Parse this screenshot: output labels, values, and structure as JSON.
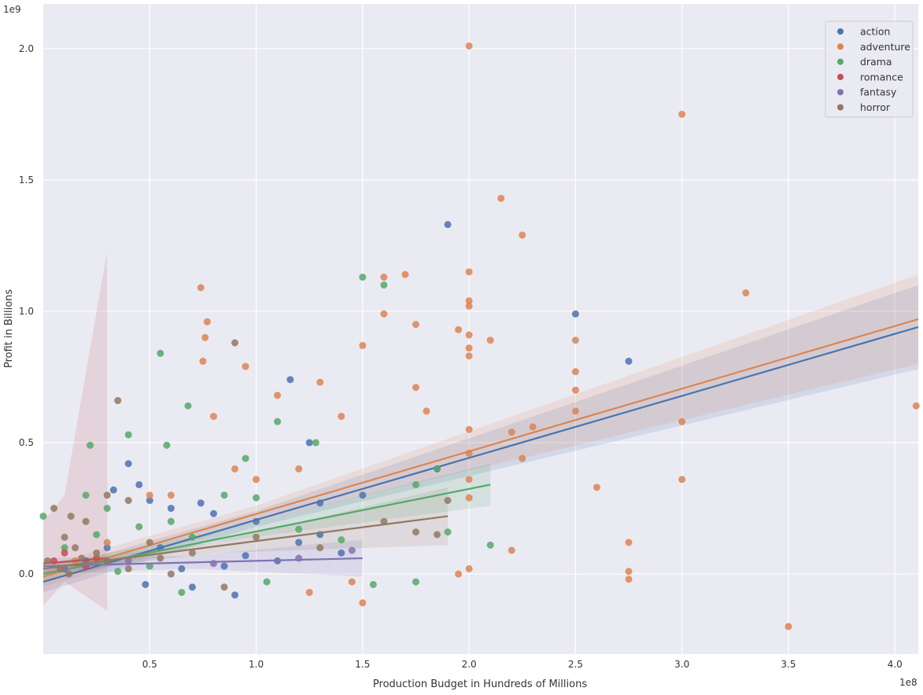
{
  "chart_data": {
    "type": "scatter",
    "title": "",
    "xlabel": "Production Budget in Hundreds of Millions",
    "ylabel": "Profit in Billions",
    "x_offset_label": "1e8",
    "y_offset_label": "1e9",
    "xlim": [
      0,
      4.11
    ],
    "ylim": [
      -0.305,
      2.17
    ],
    "x_unit_scale": 100000000.0,
    "y_unit_scale": 1000000000.0,
    "xticks": [
      0.5,
      1.0,
      1.5,
      2.0,
      2.5,
      3.0,
      3.5,
      4.0
    ],
    "xtick_labels": [
      "0.5",
      "1.0",
      "1.5",
      "2.0",
      "2.5",
      "3.0",
      "3.5",
      "4.0"
    ],
    "yticks": [
      0.0,
      0.5,
      1.0,
      1.5,
      2.0
    ],
    "ytick_labels": [
      "0.0",
      "0.5",
      "1.0",
      "1.5",
      "2.0"
    ],
    "grid": true,
    "background": "#eaeaf2",
    "legend_position": "top-right",
    "series": [
      {
        "name": "action",
        "color": "#4c72b0",
        "points": [
          [
            1.9,
            1.33
          ],
          [
            2.5,
            0.99
          ],
          [
            2.75,
            0.81
          ],
          [
            1.16,
            0.74
          ],
          [
            0.4,
            0.42
          ],
          [
            0.33,
            0.32
          ],
          [
            0.74,
            0.27
          ],
          [
            1.25,
            0.5
          ],
          [
            1.3,
            0.27
          ],
          [
            0.9,
            -0.08
          ],
          [
            0.7,
            -0.05
          ],
          [
            0.48,
            -0.04
          ],
          [
            0.45,
            0.34
          ],
          [
            0.5,
            0.28
          ],
          [
            0.6,
            0.25
          ],
          [
            0.8,
            0.23
          ],
          [
            1.0,
            0.2
          ],
          [
            1.2,
            0.12
          ],
          [
            1.4,
            0.08
          ],
          [
            0.2,
            0.05
          ],
          [
            0.3,
            0.1
          ],
          [
            0.55,
            0.1
          ],
          [
            0.65,
            0.02
          ],
          [
            0.85,
            0.03
          ],
          [
            1.1,
            0.05
          ],
          [
            1.5,
            0.3
          ],
          [
            1.85,
            0.4
          ],
          [
            1.3,
            0.15
          ],
          [
            0.1,
            0.02
          ],
          [
            0.95,
            0.07
          ]
        ],
        "fit": {
          "x": [
            0,
            4.11
          ],
          "y": [
            -0.03,
            0.94
          ]
        },
        "ci": {
          "x": [
            0,
            1.0,
            4.11
          ],
          "lower": [
            -0.07,
            0.18,
            0.78
          ],
          "upper": [
            0.01,
            0.24,
            1.1
          ]
        }
      },
      {
        "name": "adventure",
        "color": "#dd8452",
        "points": [
          [
            2.0,
            2.01
          ],
          [
            3.0,
            1.75
          ],
          [
            2.15,
            1.43
          ],
          [
            2.25,
            1.29
          ],
          [
            3.3,
            1.07
          ],
          [
            2.0,
            1.15
          ],
          [
            1.6,
            1.13
          ],
          [
            4.1,
            0.64
          ],
          [
            3.5,
            -0.2
          ],
          [
            3.0,
            0.58
          ],
          [
            3.0,
            0.36
          ],
          [
            2.5,
            0.89
          ],
          [
            2.5,
            0.77
          ],
          [
            2.5,
            0.7
          ],
          [
            2.5,
            0.62
          ],
          [
            2.75,
            0.12
          ],
          [
            2.75,
            0.01
          ],
          [
            2.75,
            -0.02
          ],
          [
            2.2,
            0.54
          ],
          [
            2.3,
            0.56
          ],
          [
            2.25,
            0.44
          ],
          [
            2.2,
            0.09
          ],
          [
            2.6,
            0.33
          ],
          [
            2.1,
            0.89
          ],
          [
            2.0,
            1.04
          ],
          [
            2.0,
            1.02
          ],
          [
            2.0,
            0.91
          ],
          [
            2.0,
            0.86
          ],
          [
            2.0,
            0.83
          ],
          [
            2.0,
            0.55
          ],
          [
            2.0,
            0.46
          ],
          [
            2.0,
            0.36
          ],
          [
            2.0,
            0.29
          ],
          [
            2.0,
            0.02
          ],
          [
            1.95,
            0.93
          ],
          [
            1.95,
            0.0
          ],
          [
            1.75,
            0.95
          ],
          [
            1.75,
            0.71
          ],
          [
            0.74,
            1.09
          ],
          [
            0.77,
            0.96
          ],
          [
            0.76,
            0.9
          ],
          [
            0.75,
            0.81
          ],
          [
            0.95,
            0.79
          ],
          [
            1.5,
            0.87
          ],
          [
            1.5,
            -0.11
          ],
          [
            1.3,
            0.73
          ],
          [
            1.1,
            0.68
          ],
          [
            0.8,
            0.6
          ],
          [
            1.6,
            0.99
          ],
          [
            1.7,
            1.14
          ],
          [
            1.8,
            0.62
          ],
          [
            1.4,
            0.6
          ],
          [
            1.2,
            0.4
          ],
          [
            1.0,
            0.36
          ],
          [
            0.9,
            0.4
          ],
          [
            0.6,
            0.3
          ],
          [
            0.5,
            0.3
          ],
          [
            0.3,
            0.12
          ],
          [
            0.15,
            0.05
          ],
          [
            1.45,
            -0.03
          ],
          [
            1.25,
            -0.07
          ]
        ],
        "fit": {
          "x": [
            0,
            4.11
          ],
          "y": [
            -0.01,
            0.97
          ]
        },
        "ci": {
          "x": [
            0,
            1.0,
            4.11
          ],
          "lower": [
            -0.05,
            0.2,
            0.8
          ],
          "upper": [
            0.03,
            0.26,
            1.14
          ]
        }
      },
      {
        "name": "drama",
        "color": "#55a868",
        "points": [
          [
            1.5,
            1.13
          ],
          [
            1.6,
            1.1
          ],
          [
            0.55,
            0.84
          ],
          [
            0.68,
            0.64
          ],
          [
            0.4,
            0.53
          ],
          [
            0.22,
            0.49
          ],
          [
            0.58,
            0.49
          ],
          [
            1.1,
            0.58
          ],
          [
            2.1,
            0.11
          ],
          [
            1.75,
            0.34
          ],
          [
            0.95,
            0.44
          ],
          [
            1.28,
            0.5
          ],
          [
            0.0,
            0.22
          ],
          [
            0.2,
            0.3
          ],
          [
            0.3,
            0.25
          ],
          [
            0.45,
            0.18
          ],
          [
            0.6,
            0.2
          ],
          [
            0.7,
            0.14
          ],
          [
            0.85,
            0.3
          ],
          [
            1.0,
            0.29
          ],
          [
            1.2,
            0.17
          ],
          [
            1.4,
            0.13
          ],
          [
            1.55,
            -0.04
          ],
          [
            1.75,
            -0.03
          ],
          [
            0.65,
            -0.07
          ],
          [
            0.5,
            0.03
          ],
          [
            0.35,
            0.01
          ],
          [
            0.1,
            0.1
          ],
          [
            0.25,
            0.15
          ],
          [
            1.85,
            0.4
          ],
          [
            1.9,
            0.16
          ],
          [
            1.05,
            -0.03
          ]
        ],
        "fit": {
          "x": [
            0,
            2.1
          ],
          "y": [
            0.0,
            0.34
          ]
        },
        "ci": {
          "x": [
            0,
            0.8,
            2.1
          ],
          "lower": [
            -0.03,
            0.12,
            0.26
          ],
          "upper": [
            0.03,
            0.16,
            0.42
          ]
        }
      },
      {
        "name": "romance",
        "color": "#c44e52",
        "points": [
          [
            0.05,
            0.05
          ],
          [
            0.1,
            0.08
          ],
          [
            0.2,
            0.03
          ],
          [
            0.25,
            0.06
          ]
        ],
        "fit": {
          "x": [
            0,
            0.3
          ],
          "y": [
            0.04,
            0.06
          ]
        },
        "ci": {
          "x": [
            0,
            0.1,
            0.3
          ],
          "lower": [
            -0.12,
            -0.03,
            -0.14
          ],
          "upper": [
            0.2,
            0.3,
            1.23
          ]
        }
      },
      {
        "name": "fantasy",
        "color": "#8172b3",
        "points": [
          [
            0.1,
            0.02
          ],
          [
            0.4,
            0.05
          ],
          [
            0.8,
            0.04
          ],
          [
            1.2,
            0.06
          ],
          [
            1.45,
            0.09
          ]
        ],
        "fit": {
          "x": [
            0,
            1.5
          ],
          "y": [
            0.03,
            0.06
          ]
        },
        "ci": {
          "x": [
            0,
            0.7,
            1.5
          ],
          "lower": [
            0.0,
            0.02,
            -0.01
          ],
          "upper": [
            0.06,
            0.07,
            0.13
          ]
        }
      },
      {
        "name": "horror",
        "color": "#937860",
        "points": [
          [
            0.35,
            0.66
          ],
          [
            0.4,
            0.28
          ],
          [
            0.85,
            -0.05
          ],
          [
            0.9,
            0.88
          ],
          [
            0.05,
            0.25
          ],
          [
            0.1,
            0.14
          ],
          [
            0.15,
            0.1
          ],
          [
            0.2,
            0.2
          ],
          [
            0.25,
            0.08
          ],
          [
            0.3,
            0.05
          ],
          [
            0.4,
            0.02
          ],
          [
            0.5,
            0.12
          ],
          [
            0.6,
            0.0
          ],
          [
            0.7,
            0.08
          ],
          [
            0.02,
            0.05
          ],
          [
            0.08,
            0.02
          ],
          [
            0.12,
            0.0
          ],
          [
            0.18,
            0.06
          ],
          [
            0.55,
            0.06
          ],
          [
            1.3,
            0.1
          ],
          [
            1.6,
            0.2
          ],
          [
            1.75,
            0.16
          ],
          [
            1.9,
            0.28
          ],
          [
            1.85,
            0.15
          ],
          [
            1.0,
            0.14
          ],
          [
            0.3,
            0.3
          ],
          [
            0.13,
            0.22
          ]
        ],
        "fit": {
          "x": [
            0,
            1.9
          ],
          "y": [
            0.02,
            0.22
          ]
        },
        "ci": {
          "x": [
            0,
            0.8,
            1.9
          ],
          "lower": [
            0.0,
            0.08,
            0.11
          ],
          "upper": [
            0.04,
            0.12,
            0.33
          ]
        }
      }
    ]
  }
}
